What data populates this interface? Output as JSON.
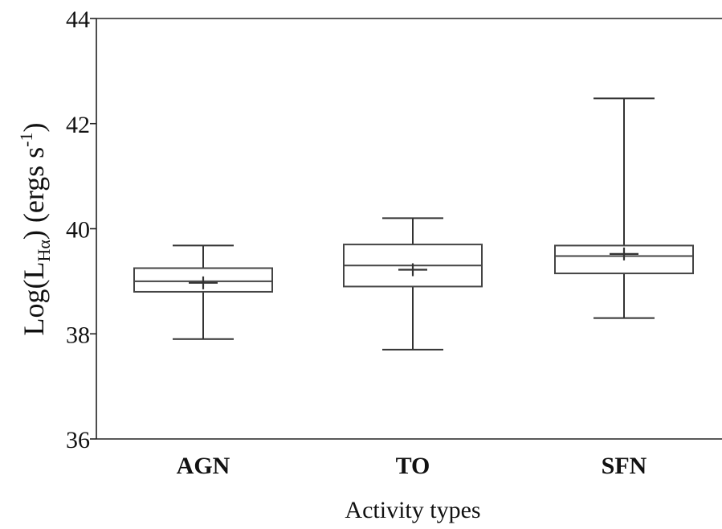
{
  "chart_data": {
    "type": "box",
    "categories": [
      "AGN",
      "TO",
      "SFN"
    ],
    "boxes": [
      {
        "category": "AGN",
        "min": 37.9,
        "q1": 38.8,
        "median": 39.0,
        "q3": 39.25,
        "max": 39.68,
        "mean": 38.97
      },
      {
        "category": "TO",
        "min": 37.7,
        "q1": 38.9,
        "median": 39.3,
        "q3": 39.7,
        "max": 40.2,
        "mean": 39.22
      },
      {
        "category": "SFN",
        "min": 38.3,
        "q1": 39.15,
        "median": 39.48,
        "q3": 39.68,
        "max": 42.48,
        "mean": 39.52
      }
    ],
    "xlabel": "Activity types",
    "ylabel": {
      "main": "Log(L",
      "sub": "Hα",
      "rest": ") (ergs s",
      "sup": "-1",
      "end": ")"
    },
    "ylim": [
      36,
      44
    ],
    "yticks": [
      "36",
      "38",
      "40",
      "42",
      "44"
    ],
    "grid": false,
    "legend": "none"
  }
}
